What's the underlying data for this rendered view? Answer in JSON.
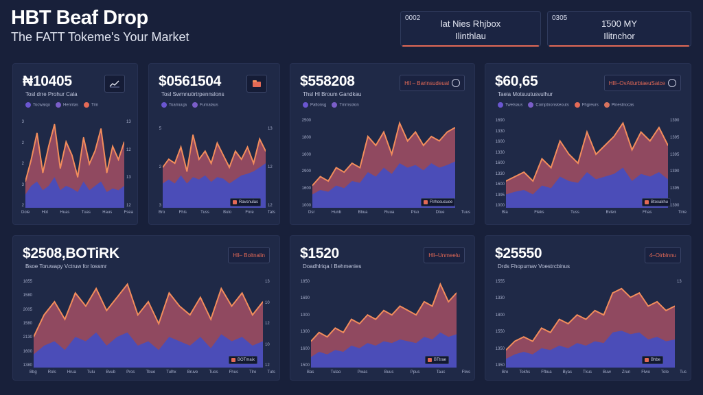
{
  "header": {
    "title": "HBT Beaf Drop",
    "subtitle": "The FATT Tokeme's Your Market"
  },
  "stat_boxes": [
    {
      "code": "0002",
      "line1": "lat Nies Rhjbox",
      "line2": "Ilinthlau"
    },
    {
      "code": "0305",
      "line1": "1̄500 MY",
      "line2": "Ilitnchor"
    }
  ],
  "colors": {
    "background": "#18203a",
    "card": "#1f2947",
    "area_blue": "#4b4db8",
    "area_red": "#9c4d63",
    "line_orange": "#f28d5c",
    "accent_red": "#e46a56"
  },
  "cards": [
    {
      "value": "₦10405",
      "subtitle": "Tosl drre Prohur Cala",
      "legend": [
        "Tocwaiqo",
        "Hennlas",
        "Tirn"
      ],
      "badge": null,
      "icon": "trend-chart-icon",
      "y_left": [
        "3",
        "2",
        "2",
        "3",
        "2"
      ],
      "y_right": [
        "13",
        "12",
        "13",
        "12"
      ],
      "x_ticks": [
        "Dole",
        "Hot",
        "Huas",
        "Tuas",
        "Haus",
        "Fsea"
      ],
      "tag": null
    },
    {
      "value": "$0561504",
      "subtitle": "Tosl Swmnuörtrpennslons",
      "legend": [
        "Toamuuja",
        "Furnalaus"
      ],
      "badge": null,
      "icon": "folder-icon",
      "y_left": [
        "5",
        "2",
        "3"
      ],
      "y_right": [
        "13",
        "12",
        "12"
      ],
      "x_ticks": [
        "Bro",
        "Fhis",
        "Tuss",
        "Bulo",
        "Fnre",
        "Tats"
      ],
      "tag": "Ravsnulas"
    },
    {
      "value": "$558208",
      "subtitle": "Thsl Hl Broum Gandkau",
      "legend": [
        "Paltonsg",
        "Tmrnsolon"
      ],
      "badge": "Hll – Barinsudeual",
      "icon": null,
      "y_left": [
        "2500",
        "1800",
        "1600",
        "2900",
        "1600",
        "1000"
      ],
      "y_right": [],
      "x_ticks": [
        "Dsr",
        "Hunb",
        "Bbua",
        "Ruua",
        "Piso",
        "Dtue",
        "Tuus"
      ],
      "tag": "Ftrhosucuoe"
    },
    {
      "value": "$60,65",
      "subtitle": "Taeia Motsuutusvulhur",
      "legend": [
        "Twetsaus",
        "Comptnonskeouts",
        "Fhgreurs",
        "Pinestnocas"
      ],
      "badge": "Hlll–OvAtlurbiaeuSatce",
      "icon": null,
      "y_left": [
        "1690",
        "1330",
        "1600",
        "1330",
        "1600",
        "1330",
        "1600",
        "1395",
        "1000"
      ],
      "y_right": [
        "1390",
        "1395",
        "1395",
        "1390",
        "1395",
        "1390"
      ],
      "x_ticks": [
        "Bla",
        "Fleks",
        "Tuss",
        "Bvlen",
        "Fhas",
        "Tirre"
      ],
      "tag": "Btoxakhu"
    },
    {
      "value": "$2508,BOTiRK",
      "subtitle": "Bsoe Toruwapy Vctruw for lossmr",
      "legend": [],
      "badge": "Hll– Boltnalin",
      "icon": null,
      "y_left": [
        "1855",
        "1580",
        "2005",
        "1580",
        "2130",
        "1600",
        "1380"
      ],
      "y_right": [
        "13",
        "10",
        "12",
        "10",
        "12"
      ],
      "x_ticks": [
        "Bbg",
        "Rols",
        "Hrua",
        "Tulu",
        "Bvub",
        "Pros",
        "Tbue",
        "Tulhx",
        "Bruve",
        "Tuos",
        "Fhus",
        "Tlre",
        "Tuts"
      ],
      "tag": "BOTmaix"
    },
    {
      "value": "$1520",
      "subtitle": "Doadhlriqa I Behmenies",
      "legend": [],
      "badge": "Hll–Unmeelu",
      "icon": null,
      "y_left": [
        "1850",
        "1690",
        "1000",
        "1300",
        "1600",
        "1500"
      ],
      "y_right": [],
      "x_ticks": [
        "Bas",
        "Tulao",
        "Pwas",
        "Buus",
        "Ppus",
        "Tauc",
        "Flws"
      ],
      "tag": "BTtrae"
    },
    {
      "value": "$25550",
      "subtitle": "Drds Fhopumav Voestrcbinus",
      "legend": [],
      "badge": "4–Oirblnnu",
      "icon": null,
      "y_left": [
        "1555",
        "1330",
        "1800",
        "1550",
        "1350",
        "1350"
      ],
      "y_right": [
        "13"
      ],
      "x_ticks": [
        "Bre",
        "Tokhs",
        "Ffbua",
        "Byas",
        "Tkus",
        "Buw",
        "Zrun",
        "Flwo",
        "Tole",
        "Tus"
      ],
      "tag": "Bhbe"
    }
  ],
  "chart_data": [
    {
      "type": "area",
      "series": [
        {
          "values": [
            0.3,
            0.55,
            0.85,
            0.4,
            0.7,
            0.95,
            0.45,
            0.75,
            0.6,
            0.35,
            0.8,
            0.5,
            0.65,
            0.9,
            0.4,
            0.7,
            0.55,
            0.75
          ]
        },
        {
          "values": [
            0.15,
            0.25,
            0.3,
            0.2,
            0.25,
            0.35,
            0.2,
            0.25,
            0.22,
            0.18,
            0.3,
            0.2,
            0.25,
            0.3,
            0.18,
            0.22,
            0.2,
            0.25
          ]
        }
      ]
    },
    {
      "type": "area",
      "series": [
        {
          "values": [
            0.5,
            0.6,
            0.55,
            0.75,
            0.45,
            0.9,
            0.6,
            0.7,
            0.55,
            0.8,
            0.65,
            0.5,
            0.7,
            0.6,
            0.75,
            0.55,
            0.85,
            0.7
          ]
        },
        {
          "values": [
            0.3,
            0.35,
            0.3,
            0.4,
            0.3,
            0.38,
            0.35,
            0.4,
            0.32,
            0.38,
            0.36,
            0.3,
            0.35,
            0.4,
            0.42,
            0.45,
            0.5,
            0.55
          ]
        }
      ]
    },
    {
      "type": "area",
      "series": [
        {
          "values": [
            0.25,
            0.35,
            0.3,
            0.45,
            0.4,
            0.5,
            0.45,
            0.8,
            0.7,
            0.85,
            0.6,
            0.95,
            0.75,
            0.85,
            0.7,
            0.8,
            0.75,
            0.85,
            0.9
          ]
        },
        {
          "values": [
            0.15,
            0.2,
            0.18,
            0.25,
            0.22,
            0.3,
            0.28,
            0.4,
            0.35,
            0.45,
            0.38,
            0.5,
            0.45,
            0.48,
            0.42,
            0.5,
            0.45,
            0.48,
            0.52
          ]
        }
      ]
    },
    {
      "type": "area",
      "series": [
        {
          "values": [
            0.3,
            0.35,
            0.4,
            0.3,
            0.55,
            0.45,
            0.75,
            0.6,
            0.5,
            0.85,
            0.6,
            0.7,
            0.8,
            0.95,
            0.65,
            0.85,
            0.75,
            0.9,
            0.7
          ]
        },
        {
          "values": [
            0.15,
            0.18,
            0.2,
            0.15,
            0.25,
            0.22,
            0.35,
            0.3,
            0.28,
            0.4,
            0.32,
            0.35,
            0.38,
            0.45,
            0.3,
            0.38,
            0.35,
            0.4,
            0.32
          ]
        }
      ]
    },
    {
      "type": "area",
      "series": [
        {
          "values": [
            0.35,
            0.6,
            0.75,
            0.55,
            0.85,
            0.7,
            0.9,
            0.65,
            0.8,
            0.95,
            0.6,
            0.75,
            0.5,
            0.85,
            0.7,
            0.6,
            0.8,
            0.55,
            0.9,
            0.7,
            0.85,
            0.6,
            0.75
          ]
        },
        {
          "values": [
            0.15,
            0.25,
            0.3,
            0.2,
            0.35,
            0.3,
            0.4,
            0.25,
            0.35,
            0.4,
            0.25,
            0.3,
            0.2,
            0.35,
            0.3,
            0.25,
            0.35,
            0.22,
            0.38,
            0.3,
            0.35,
            0.25,
            0.3
          ]
        }
      ]
    },
    {
      "type": "area",
      "series": [
        {
          "values": [
            0.3,
            0.4,
            0.35,
            0.45,
            0.4,
            0.55,
            0.5,
            0.6,
            0.55,
            0.65,
            0.6,
            0.7,
            0.65,
            0.6,
            0.75,
            0.7,
            0.95,
            0.75,
            0.85
          ]
        },
        {
          "values": [
            0.12,
            0.18,
            0.15,
            0.2,
            0.18,
            0.25,
            0.22,
            0.28,
            0.25,
            0.3,
            0.28,
            0.32,
            0.3,
            0.28,
            0.35,
            0.32,
            0.4,
            0.35,
            0.38
          ]
        }
      ]
    },
    {
      "type": "area",
      "series": [
        {
          "values": [
            0.2,
            0.3,
            0.35,
            0.3,
            0.45,
            0.4,
            0.55,
            0.5,
            0.6,
            0.55,
            0.65,
            0.6,
            0.85,
            0.9,
            0.8,
            0.85,
            0.7,
            0.75,
            0.65,
            0.7
          ]
        },
        {
          "values": [
            0.1,
            0.15,
            0.18,
            0.15,
            0.22,
            0.2,
            0.25,
            0.22,
            0.28,
            0.25,
            0.3,
            0.28,
            0.4,
            0.42,
            0.38,
            0.4,
            0.32,
            0.35,
            0.3,
            0.32
          ]
        }
      ]
    }
  ]
}
